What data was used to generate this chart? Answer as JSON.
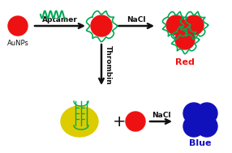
{
  "bg_color": "#ffffff",
  "red_color": "#ee1111",
  "green_color": "#00aa55",
  "blue_color": "#1111bb",
  "yellow_color": "#ddcc00",
  "black_color": "#111111",
  "text_aunps": "AuNPs",
  "text_aptamer": "Aptamer",
  "text_nacl1": "NaCl",
  "text_nacl2": "NaCl",
  "text_thrombin": "Thrombin",
  "text_red": "Red",
  "text_blue": "Blue",
  "figsize": [
    2.86,
    1.89
  ],
  "dpi": 100
}
